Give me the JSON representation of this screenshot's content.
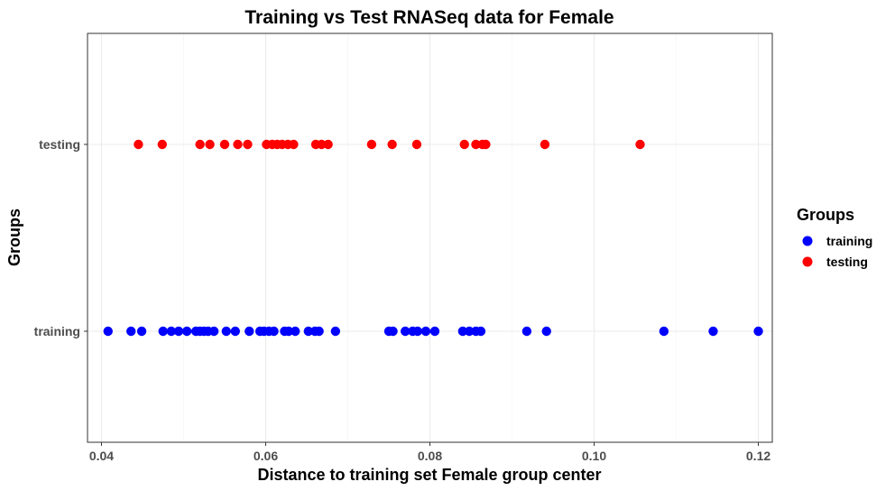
{
  "chart_data": {
    "type": "scatter",
    "title": "Training vs Test RNASeq data for Female",
    "xlabel": "Distance to training set Female group center",
    "ylabel": "Groups",
    "xlim": [
      0.0383,
      0.1217
    ],
    "x_ticks": [
      "0.04",
      "0.06",
      "0.08",
      "0.10",
      "0.12"
    ],
    "x_tick_values": [
      0.04,
      0.06,
      0.08,
      0.1,
      0.12
    ],
    "categories": [
      "training",
      "testing"
    ],
    "grid": true,
    "legend": {
      "title": "Groups",
      "position": "right",
      "entries": [
        {
          "label": "training",
          "color": "#0000ff"
        },
        {
          "label": "testing",
          "color": "#ff0000"
        }
      ]
    },
    "series": [
      {
        "name": "training",
        "color": "#0000ff",
        "x": [
          0.0408,
          0.0436,
          0.0449,
          0.0475,
          0.0485,
          0.0494,
          0.0504,
          0.0515,
          0.052,
          0.0525,
          0.053,
          0.0537,
          0.0552,
          0.0563,
          0.058,
          0.0593,
          0.0598,
          0.0604,
          0.061,
          0.0623,
          0.0628,
          0.0636,
          0.0652,
          0.066,
          0.0665,
          0.0685,
          0.075,
          0.0755,
          0.077,
          0.0779,
          0.0785,
          0.0795,
          0.0806,
          0.084,
          0.0848,
          0.0856,
          0.0862,
          0.0918,
          0.0942,
          0.1085,
          0.1145,
          0.12
        ]
      },
      {
        "name": "testing",
        "color": "#ff0000",
        "x": [
          0.0445,
          0.0474,
          0.052,
          0.0532,
          0.055,
          0.0566,
          0.0578,
          0.0601,
          0.0608,
          0.0614,
          0.062,
          0.0627,
          0.0634,
          0.0661,
          0.0668,
          0.0676,
          0.0729,
          0.0754,
          0.0784,
          0.0842,
          0.0856,
          0.0864,
          0.0868,
          0.094,
          0.1056
        ]
      }
    ]
  }
}
